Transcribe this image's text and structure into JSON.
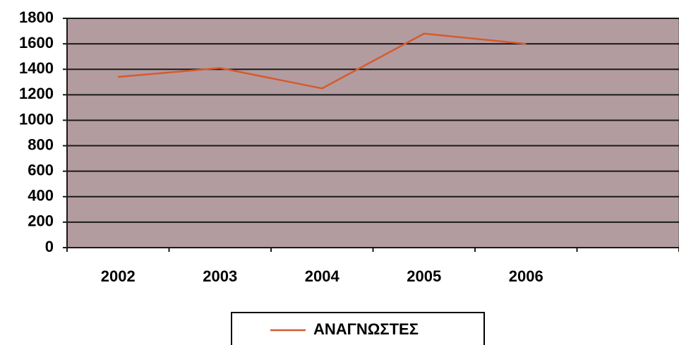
{
  "chart_data": {
    "type": "line",
    "categories": [
      "2002",
      "2003",
      "2004",
      "2005",
      "2006",
      null
    ],
    "series": [
      {
        "name": "ΑΝΑΓΝΩΣΤΕΣ",
        "color": "#d65a2e",
        "values": [
          1340,
          1410,
          1250,
          1680,
          1600,
          null
        ]
      }
    ],
    "ylim": [
      0,
      1800
    ],
    "yticks": [
      0,
      200,
      400,
      600,
      800,
      1000,
      1200,
      1400,
      1600,
      1800
    ],
    "grid": true,
    "legend": "bottom",
    "plot_color": "#b39c9f"
  }
}
